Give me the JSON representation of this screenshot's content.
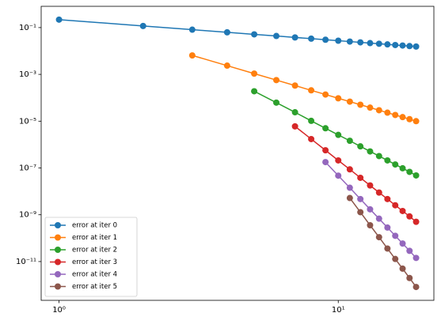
{
  "chart_data": {
    "type": "line",
    "xscale": "log",
    "yscale": "log",
    "xlim": [
      0.863,
      22
    ],
    "ylim": [
      2.2e-13,
      0.81
    ],
    "xticks": [
      {
        "value": 1,
        "label": "10⁰"
      },
      {
        "value": 10,
        "label": "10¹"
      }
    ],
    "yticks": [
      {
        "value": 0.1,
        "label": "10⁻¹"
      },
      {
        "value": 0.001,
        "label": "10⁻³"
      },
      {
        "value": 1e-05,
        "label": "10⁻⁵"
      },
      {
        "value": 1e-07,
        "label": "10⁻⁷"
      },
      {
        "value": 1e-09,
        "label": "10⁻⁹"
      },
      {
        "value": 1e-11,
        "label": "10⁻¹¹"
      }
    ],
    "legend": "lower left",
    "series": [
      {
        "name": "error at iter 0",
        "color": "#1f77b4",
        "x": [
          1,
          2,
          3,
          4,
          5,
          6,
          7,
          8,
          9,
          10,
          11,
          12,
          13,
          14,
          15,
          16,
          17,
          18,
          19
        ],
        "values": [
          0.219,
          0.117,
          0.0815,
          0.0628,
          0.0514,
          0.0437,
          0.0379,
          0.0337,
          0.0303,
          0.0275,
          0.0253,
          0.0234,
          0.0217,
          0.0204,
          0.0191,
          0.018,
          0.0171,
          0.0162,
          0.0155
        ]
      },
      {
        "name": "error at iter 1",
        "color": "#ff7f0e",
        "x": [
          3,
          4,
          5,
          6,
          7,
          8,
          9,
          10,
          11,
          12,
          13,
          14,
          15,
          16,
          17,
          18,
          19
        ],
        "values": [
          0.00646,
          0.00236,
          0.00108,
          0.00057,
          0.000333,
          0.000208,
          0.000138,
          9.5e-05,
          6.85e-05,
          5.05e-05,
          3.8e-05,
          2.94e-05,
          2.31e-05,
          1.84e-05,
          1.49e-05,
          1.22e-05,
          1e-05
        ]
      },
      {
        "name": "error at iter 2",
        "color": "#2ca02c",
        "x": [
          5,
          6,
          7,
          8,
          9,
          10,
          11,
          12,
          13,
          14,
          15,
          16,
          17,
          18,
          19
        ],
        "values": [
          0.00019,
          6.2e-05,
          2.4e-05,
          1.03e-05,
          4.98e-06,
          2.59e-06,
          1.45e-06,
          8.4e-07,
          5.1e-07,
          3.23e-07,
          2.1e-07,
          1.41e-07,
          9.7e-08,
          6.8e-08,
          4.8e-08
        ]
      },
      {
        "name": "error at iter 3",
        "color": "#d62728",
        "x": [
          7,
          8,
          9,
          10,
          11,
          12,
          13,
          14,
          15,
          16,
          17,
          18,
          19
        ],
        "values": [
          6e-06,
          1.72e-06,
          5.7e-07,
          2.1e-07,
          8.7e-08,
          3.8e-08,
          1.79e-08,
          8.9e-09,
          4.7e-09,
          2.55e-09,
          1.45e-09,
          8.5e-10,
          5e-10
        ]
      },
      {
        "name": "error at iter 4",
        "color": "#9467bd",
        "x": [
          9,
          10,
          11,
          12,
          13,
          14,
          15,
          16,
          17,
          18,
          19
        ],
        "values": [
          1.78e-07,
          4.7e-08,
          1.43e-08,
          4.7e-09,
          1.71e-09,
          6.8e-10,
          2.84e-10,
          1.26e-10,
          5.9e-11,
          2.87e-11,
          1.43e-11
        ]
      },
      {
        "name": "error at iter 5",
        "color": "#8c564b",
        "x": [
          11,
          12,
          13,
          14,
          15,
          16,
          17,
          18,
          19
        ],
        "values": [
          5.2e-09,
          1.29e-09,
          3.56e-10,
          1.1e-10,
          3.6e-11,
          1.29e-11,
          4.97e-12,
          1.98e-12,
          8.2e-13
        ]
      }
    ]
  }
}
